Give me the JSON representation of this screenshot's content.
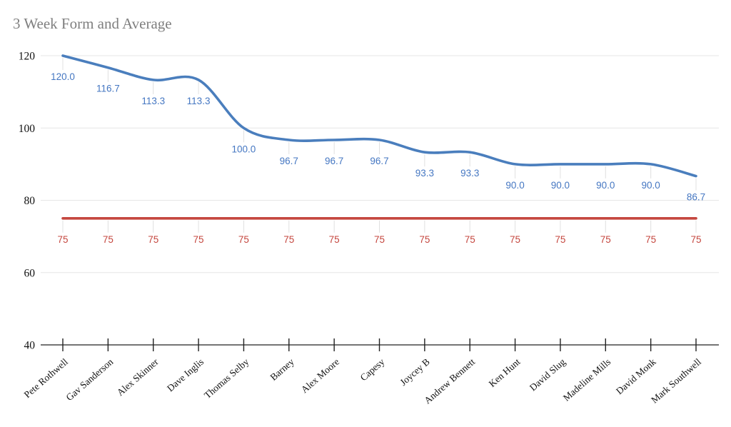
{
  "chart_data": {
    "type": "line",
    "title": "3 Week Form and Average",
    "title_color": "#7f7f7f",
    "categories": [
      "Pete Rothwell",
      "Gav Sanderson",
      "Alex Skinner",
      "Dave Inglis",
      "Thomas Selby",
      "Barney",
      "Alex Moore",
      "Capesy",
      "Joycey B",
      "Andrew Bennett",
      "Ken Hunt",
      "David Slug",
      "Madeline Mills",
      "David Monk",
      "Mark Southwell"
    ],
    "series": [
      {
        "name": "3 Week Form",
        "color": "#4a7ebd",
        "label_color": "#4577c2",
        "smooth": true,
        "values": [
          120,
          116.7,
          113.3,
          113.3,
          100,
          96.7,
          96.7,
          96.7,
          93.3,
          93.3,
          90,
          90,
          90,
          90,
          86.7
        ],
        "labels": [
          "120.0",
          "116.7",
          "113.3",
          "113.3",
          "100.0",
          "96.7",
          "96.7",
          "96.7",
          "93.3",
          "93.3",
          "90.0",
          "90.0",
          "90.0",
          "90.0",
          "86.7"
        ]
      },
      {
        "name": "Average",
        "color": "#c5473f",
        "label_color": "#c5473f",
        "smooth": false,
        "values": [
          75,
          75,
          75,
          75,
          75,
          75,
          75,
          75,
          75,
          75,
          75,
          75,
          75,
          75,
          75
        ],
        "labels": [
          "75",
          "75",
          "75",
          "75",
          "75",
          "75",
          "75",
          "75",
          "75",
          "75",
          "75",
          "75",
          "75",
          "75",
          "75"
        ]
      }
    ],
    "ylim": [
      40,
      120
    ],
    "yticks": [
      40,
      60,
      80,
      100,
      120
    ],
    "ytick_labels": [
      "40",
      "60",
      "80",
      "100",
      "120"
    ],
    "grid": "horizontal",
    "legend": "none",
    "axis_color": "#212121",
    "grid_color": "#e6e6e6",
    "leader_color": "#e0e0e0",
    "tick_label_color": "#111111",
    "background": "#ffffff"
  }
}
